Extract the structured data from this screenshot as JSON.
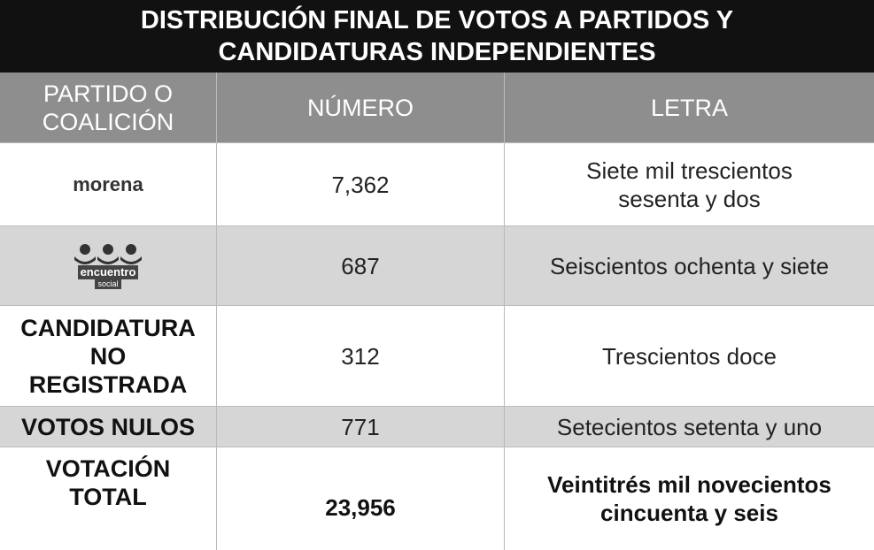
{
  "title": "DISTRIBUCIÓN FINAL DE VOTOS A PARTIDOS Y CANDIDATURAS INDEPENDIENTES",
  "table": {
    "headers": [
      "PARTIDO O COALICIÓN",
      "NÚMERO",
      "LETRA"
    ],
    "rows": [
      {
        "party": "morena",
        "number": "7,362",
        "letter": "Siete mil trescientos sesenta y dos"
      },
      {
        "party": "encuentro",
        "party_sub": "social",
        "number": "687",
        "letter": "Seiscientos ochenta y siete"
      },
      {
        "party": "CANDIDATURA NO REGISTRADA",
        "number": "312",
        "letter": "Trescientos doce"
      },
      {
        "party": "VOTOS NULOS",
        "number": "771",
        "letter": "Setecientos setenta y uno"
      },
      {
        "party": "VOTACIÓN TOTAL",
        "number": "23,956",
        "letter": "Veintitrés mil novecientos cincuenta y seis"
      }
    ]
  }
}
